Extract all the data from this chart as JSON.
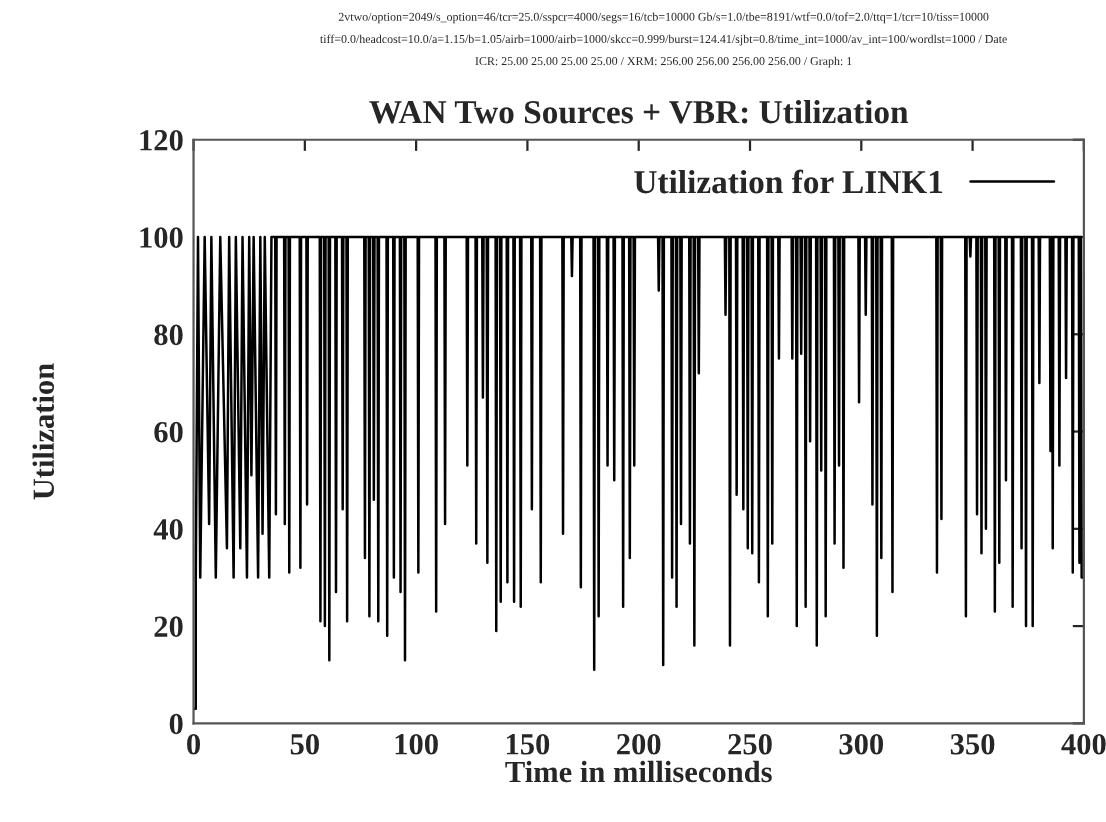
{
  "chart_data": {
    "type": "line",
    "title": "WAN Two Sources + VBR: Utilization",
    "annotations": [
      "2vtwo/option=2049/s_option=46/tcr=25.0/sspcr=4000/segs=16/tcb=10000 Gb/s=1.0/tbe=8191/wtf=0.0/tof=2.0/ttq=1/tcr=10/tiss=10000",
      "tiff=0.0/headcost=10.0/a=1.15/b=1.05/airb=1000/airb=1000/skcc=0.999/burst=124.41/sjbt=0.8/time_int=1000/av_int=100/wordlst=1000 / Date",
      "ICR: 25.00 25.00 25.00 25.00 / XRM: 256.00 256.00 256.00 256.00 / Graph: 1"
    ],
    "xlabel": "Time in milliseconds",
    "ylabel": "Utilization",
    "xlim": [
      0,
      400
    ],
    "xticks": [
      0,
      50,
      100,
      150,
      200,
      250,
      300,
      350,
      400
    ],
    "ylim": [
      0,
      120
    ],
    "yticks": [
      0,
      20,
      40,
      60,
      80,
      100,
      120
    ],
    "grid": false,
    "legend": "top right",
    "marker": "none",
    "line_style": "solid",
    "series": [
      {
        "name": "Utilization for LINK1",
        "color": "#000000",
        "x": [
          0,
          1,
          1,
          2,
          3,
          5,
          7,
          8,
          10,
          12,
          15,
          16,
          18,
          19,
          21,
          22,
          24,
          25,
          26,
          27,
          29,
          30,
          31,
          32,
          34,
          35,
          36.7,
          37,
          37.3,
          40.7,
          41,
          41.3,
          42.7,
          43,
          43.3,
          47.7,
          48,
          48.3,
          50.7,
          51,
          51.3,
          56.7,
          57,
          57.3,
          58.7,
          59,
          59.3,
          60.7,
          61,
          61.3,
          63.7,
          64,
          64.3,
          66.7,
          67,
          67.3,
          68.7,
          69,
          69.3,
          76.7,
          77,
          77.3,
          78.7,
          79,
          79.3,
          80.7,
          81,
          81.3,
          82.7,
          83,
          83.3,
          86.7,
          87,
          87.3,
          89.7,
          90,
          90.3,
          92.7,
          93,
          93.3,
          94.7,
          95,
          95.3,
          100.7,
          101,
          101.3,
          108.7,
          109,
          109.3,
          112.7,
          113,
          113.3,
          122.7,
          123,
          123.3,
          126.7,
          127,
          127.3,
          129.7,
          130,
          130.3,
          131.7,
          132,
          132.3,
          135.7,
          136,
          136.3,
          137.7,
          138,
          138.3,
          140.7,
          141,
          141.3,
          143.7,
          144,
          144.3,
          146.7,
          147,
          147.3,
          151.7,
          152,
          152.3,
          155.7,
          156,
          156.3,
          165.7,
          166,
          166.3,
          169.7,
          170,
          170.3,
          173.7,
          174,
          174.3,
          179.7,
          180,
          180.3,
          181.7,
          182,
          182.3,
          185.7,
          186,
          186.3,
          188.7,
          189,
          189.3,
          192.7,
          193,
          193.3,
          195.7,
          196,
          196.3,
          197.7,
          198,
          198.3,
          208.7,
          209,
          209.3,
          210.7,
          211,
          211.3,
          214.7,
          215,
          215.3,
          216.7,
          217,
          217.3,
          218.7,
          219,
          219.3,
          222.7,
          223,
          223.3,
          224.7,
          225,
          225.3,
          226.7,
          227,
          227.3,
          238.7,
          239,
          239.3,
          240.7,
          241,
          241.3,
          243.7,
          244,
          244.3,
          246.7,
          247,
          247.3,
          248.7,
          249,
          249.3,
          250.7,
          251,
          251.3,
          253.7,
          254,
          254.3,
          257.7,
          258,
          258.3,
          259.7,
          260,
          260.3,
          262.7,
          263,
          263.3,
          268.7,
          269,
          269.3,
          270.7,
          271,
          271.3,
          272.7,
          273,
          273.3,
          274.7,
          275,
          275.3,
          276.7,
          277,
          277.3,
          279.7,
          280,
          280.3,
          281.7,
          282,
          282.3,
          283.7,
          284,
          284.3,
          287.7,
          288,
          288.3,
          289.7,
          290,
          290.3,
          291.7,
          292,
          292.3,
          298.7,
          299,
          299.3,
          301.7,
          302,
          302.3,
          304.7,
          305,
          305.3,
          306.7,
          307,
          307.3,
          308.7,
          309,
          309.3,
          313.7,
          314,
          314.3,
          333.7,
          334,
          334.3,
          335.7,
          336,
          336.3,
          346.7,
          347,
          347.3,
          348.7,
          349,
          349.3,
          351.7,
          352,
          352.3,
          353.7,
          354,
          354.3,
          355.7,
          356,
          356.3,
          359.7,
          360,
          360.3,
          361.7,
          362,
          362.3,
          364.7,
          365,
          365.3,
          367.7,
          368,
          368.3,
          371.7,
          372,
          372.3,
          373.7,
          374,
          374.3,
          376.7,
          377,
          377.3,
          379.7,
          380,
          380.3,
          384.7,
          385,
          385.3,
          385.7,
          386,
          386.3,
          388.7,
          389,
          389.3,
          391.7,
          392,
          392.3,
          394.7,
          395,
          395.3,
          397.7,
          398,
          398.3,
          398.7,
          399,
          400
        ],
        "values": [
          3,
          3,
          30,
          100,
          30,
          100,
          41,
          100,
          30,
          100,
          36,
          100,
          30,
          100,
          36,
          100,
          30,
          100,
          51,
          100,
          30,
          100,
          39,
          100,
          30,
          100,
          100,
          43,
          100,
          100,
          41,
          100,
          100,
          31,
          100,
          100,
          32,
          100,
          100,
          45,
          100,
          100,
          21,
          100,
          100,
          20,
          100,
          100,
          13,
          100,
          100,
          27,
          100,
          100,
          44,
          100,
          100,
          21,
          100,
          100,
          34,
          100,
          100,
          22,
          100,
          100,
          46,
          100,
          100,
          21,
          100,
          100,
          18,
          100,
          100,
          30,
          100,
          100,
          27,
          100,
          100,
          13,
          100,
          100,
          31,
          100,
          100,
          23,
          100,
          100,
          41,
          100,
          100,
          53,
          100,
          100,
          37,
          100,
          100,
          67,
          100,
          100,
          33,
          100,
          100,
          19,
          100,
          100,
          25,
          100,
          100,
          29,
          100,
          100,
          25,
          100,
          100,
          24,
          100,
          100,
          44,
          100,
          100,
          29,
          100,
          100,
          39,
          100,
          100,
          92,
          100,
          100,
          28,
          100,
          100,
          11,
          100,
          100,
          22,
          100,
          100,
          53,
          100,
          100,
          50,
          100,
          100,
          24,
          100,
          100,
          34,
          100,
          100,
          53,
          100,
          100,
          89,
          100,
          100,
          12,
          100,
          100,
          30,
          100,
          100,
          24,
          100,
          100,
          41,
          100,
          100,
          37,
          100,
          100,
          16,
          100,
          100,
          72,
          100,
          100,
          84,
          100,
          100,
          16,
          100,
          100,
          47,
          100,
          100,
          44,
          100,
          100,
          36,
          100,
          100,
          35,
          100,
          100,
          29,
          100,
          100,
          22,
          100,
          100,
          37,
          100,
          100,
          75,
          100,
          100,
          75,
          100,
          100,
          20,
          100,
          100,
          76,
          100,
          100,
          24,
          100,
          100,
          58,
          100,
          100,
          16,
          100,
          100,
          52,
          100,
          100,
          22,
          100,
          100,
          37,
          100,
          100,
          53,
          100,
          100,
          32,
          100,
          100,
          66,
          100,
          100,
          84,
          100,
          100,
          45,
          100,
          100,
          18,
          100,
          100,
          34,
          100,
          100,
          27,
          100,
          100,
          31,
          100,
          100,
          42,
          100,
          100,
          22,
          100,
          100,
          96,
          100,
          100,
          43,
          100,
          100,
          35,
          100,
          100,
          40,
          100,
          100,
          23,
          100,
          100,
          33,
          100,
          100,
          50,
          100,
          100,
          24,
          100,
          100,
          36,
          100,
          100,
          20,
          100,
          100,
          20,
          100,
          100,
          70,
          100,
          100,
          56,
          100,
          100,
          36,
          100,
          100,
          53,
          100,
          100,
          71,
          100,
          100,
          31,
          100,
          100,
          33,
          100,
          100,
          30,
          30
        ]
      }
    ]
  }
}
